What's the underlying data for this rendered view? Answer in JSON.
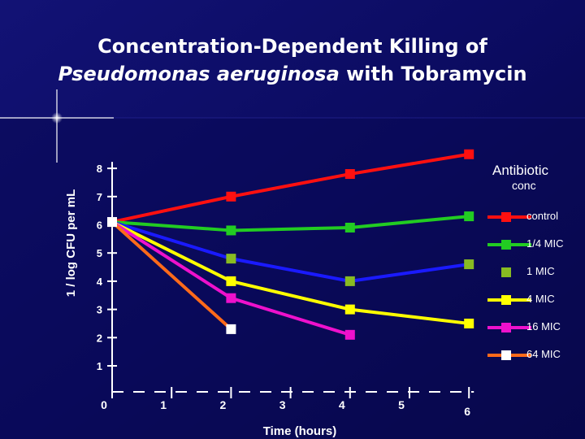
{
  "title_line1": "Concentration-Dependent Killing of",
  "title_line2_italic": "Pseudomonas aeruginosa",
  "title_line2_rest": " with Tobramycin",
  "colors": {
    "background": "#0b0b5c",
    "axis": "#ffffff",
    "text": "#ffffff"
  },
  "chart_data": {
    "type": "line",
    "title": "Concentration-Dependent Killing of Pseudomonas aeruginosa with Tobramycin",
    "xlabel": "Time (hours)",
    "ylabel": "1 / log CFU per mL",
    "xlim": [
      0,
      6
    ],
    "ylim": [
      1,
      8
    ],
    "x_ticks": [
      "0",
      "1",
      "2",
      "3",
      "4",
      "5",
      "6"
    ],
    "y_ticks": [
      "1",
      "2",
      "3",
      "4",
      "5",
      "6",
      "7",
      "8"
    ],
    "legend_title": [
      "Antibiotic",
      "conc"
    ],
    "legend_position": "right",
    "series": [
      {
        "name": "control",
        "color": "#ff1010",
        "x": [
          0,
          2,
          4,
          6
        ],
        "values": [
          6.1,
          7.0,
          7.8,
          8.5
        ],
        "marker": "square",
        "line": true
      },
      {
        "name": "1/4 MIC",
        "color": "#22cc22",
        "x": [
          0,
          2,
          4,
          6
        ],
        "values": [
          6.1,
          5.8,
          5.9,
          6.3
        ],
        "marker": "square",
        "line": true
      },
      {
        "name": "1 MIC",
        "color": "#88bb22",
        "x": [
          0,
          2,
          4,
          6
        ],
        "values": [
          6.1,
          4.8,
          4.0,
          4.6
        ],
        "marker": "square",
        "line": false,
        "connector_color": "#1a1aff"
      },
      {
        "name": "4 MIC",
        "color": "#ffff00",
        "x": [
          0,
          2,
          4,
          6
        ],
        "values": [
          6.1,
          4.0,
          3.0,
          2.5
        ],
        "marker": "square",
        "line": true
      },
      {
        "name": "16 MIC",
        "color": "#ee11cc",
        "x": [
          0,
          2,
          4
        ],
        "values": [
          6.1,
          3.4,
          2.1
        ],
        "marker": "square",
        "line": true
      },
      {
        "name": "64 MIC",
        "color": "#ff6a1a",
        "x": [
          0,
          2
        ],
        "values": [
          6.1,
          2.3
        ],
        "marker": "square",
        "line": true,
        "marker_color": "#ffffff"
      }
    ]
  }
}
